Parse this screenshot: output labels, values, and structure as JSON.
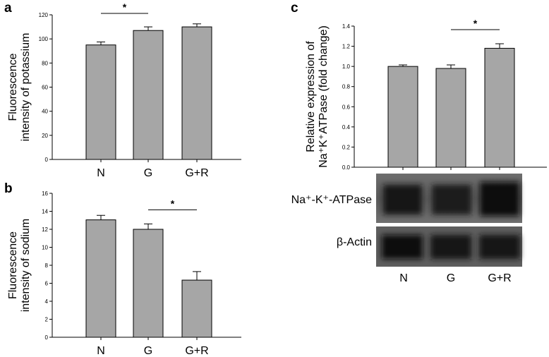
{
  "chart_data": [
    {
      "type": "bar",
      "panel": "a",
      "categories": [
        "N",
        "G",
        "G+R"
      ],
      "values": [
        95,
        107,
        110
      ],
      "errors": [
        2.5,
        3,
        2.5
      ],
      "ylabel_lines": [
        "Fluorescence",
        "intensity of potassium"
      ],
      "ylim": [
        0,
        120
      ],
      "yticks": [
        "0",
        "20",
        "40",
        "60",
        "80",
        "100",
        "120"
      ],
      "yticks_v": [
        0,
        20,
        40,
        60,
        80,
        100,
        120
      ],
      "significance": [
        {
          "from": 0,
          "to": 1,
          "label": "*"
        }
      ],
      "grid": false,
      "bar_color": "#a6a6a6"
    },
    {
      "type": "bar",
      "panel": "b",
      "categories": [
        "N",
        "G",
        "G+R"
      ],
      "values": [
        13.05,
        12.0,
        6.35
      ],
      "errors": [
        0.5,
        0.6,
        0.95
      ],
      "ylabel_lines": [
        "Fluorescence",
        "intensity of sodium"
      ],
      "ylim": [
        0,
        16
      ],
      "yticks": [
        "0",
        "2",
        "4",
        "6",
        "8",
        "10",
        "12",
        "14",
        "16"
      ],
      "yticks_v": [
        0,
        2,
        4,
        6,
        8,
        10,
        12,
        14,
        16
      ],
      "significance": [
        {
          "from": 1,
          "to": 2,
          "label": "*"
        }
      ],
      "grid": false,
      "bar_color": "#a6a6a6"
    },
    {
      "type": "bar",
      "panel": "c",
      "categories": [
        "N",
        "G",
        "G+R"
      ],
      "values": [
        1.0,
        0.98,
        1.18
      ],
      "errors": [
        0.015,
        0.035,
        0.045
      ],
      "ylabel_lines": [
        "Relative expression of",
        "Na⁺K⁺ATPase (fold change)"
      ],
      "ylim": [
        0,
        1.4
      ],
      "yticks": [
        "0.0",
        "0.2",
        "0.4",
        "0.6",
        "0.8",
        "1.0",
        "1.2",
        "1.4"
      ],
      "yticks_v": [
        0,
        0.2,
        0.4,
        0.6,
        0.8,
        1.0,
        1.2,
        1.4
      ],
      "significance": [
        {
          "from": 1,
          "to": 2,
          "label": "*"
        }
      ],
      "grid": false,
      "bar_color": "#a6a6a6"
    }
  ],
  "blot": {
    "rows": [
      {
        "label": "Na⁺-K⁺-ATPase"
      },
      {
        "label": "β-Actin"
      }
    ],
    "lanes": [
      "N",
      "G",
      "G+R"
    ]
  }
}
